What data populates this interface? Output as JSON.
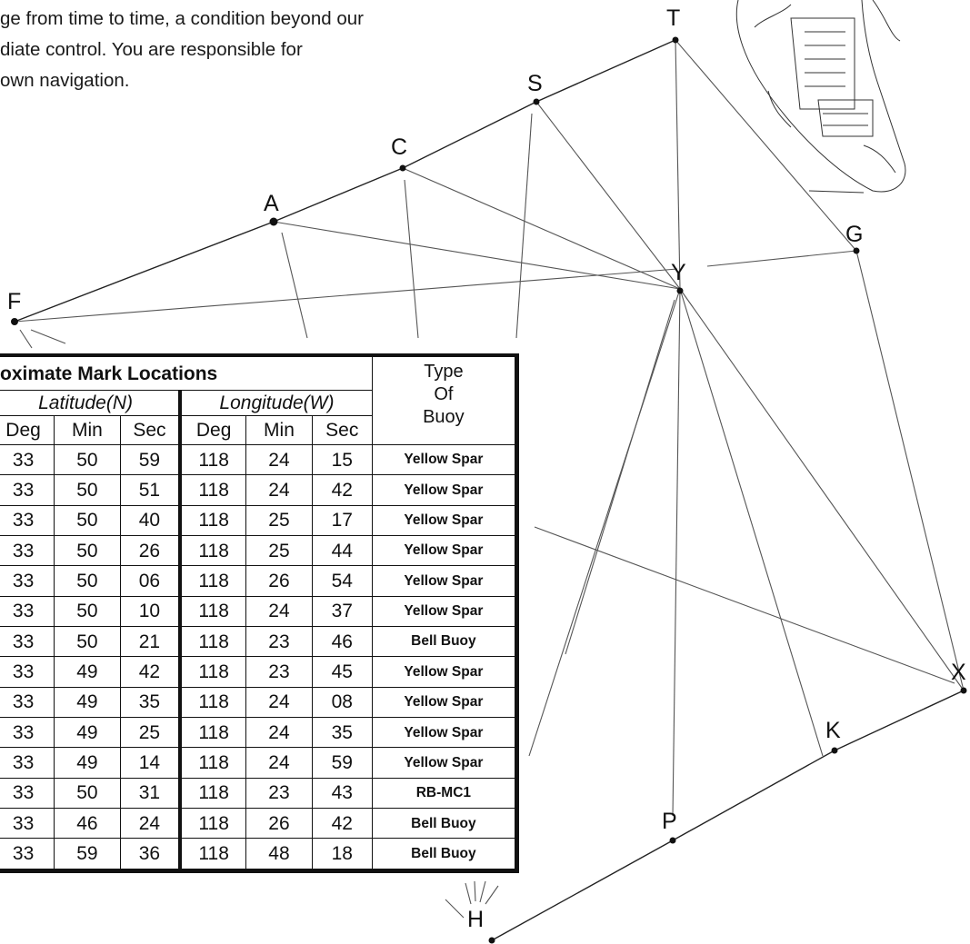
{
  "intro_lines": [
    "ge from time to time, a condition beyond our",
    "diate control.  You are responsible for",
    "own navigation."
  ],
  "marks": {
    "T": "T",
    "S": "S",
    "C": "C",
    "A": "A",
    "G": "G",
    "Y": "Y",
    "F": "F",
    "X": "X",
    "K": "K",
    "P": "P",
    "H": "H"
  },
  "table": {
    "title": "oximate Mark Locations",
    "type_header_lines": [
      "Type",
      "Of",
      "Buoy"
    ],
    "lat_header": "Latitude(N)",
    "lon_header": "Longitude(W)",
    "sub_headers": [
      "Deg",
      "Min",
      "Sec",
      "Deg",
      "Min",
      "Sec"
    ],
    "rows": [
      [
        "33",
        "50",
        "59",
        "118",
        "24",
        "15",
        "Yellow Spar"
      ],
      [
        "33",
        "50",
        "51",
        "118",
        "24",
        "42",
        "Yellow Spar"
      ],
      [
        "33",
        "50",
        "40",
        "118",
        "25",
        "17",
        "Yellow Spar"
      ],
      [
        "33",
        "50",
        "26",
        "118",
        "25",
        "44",
        "Yellow Spar"
      ],
      [
        "33",
        "50",
        "06",
        "118",
        "26",
        "54",
        "Yellow Spar"
      ],
      [
        "33",
        "50",
        "10",
        "118",
        "24",
        "37",
        "Yellow Spar"
      ],
      [
        "33",
        "50",
        "21",
        "118",
        "23",
        "46",
        "Bell Buoy"
      ],
      [
        "33",
        "49",
        "42",
        "118",
        "23",
        "45",
        "Yellow Spar"
      ],
      [
        "33",
        "49",
        "35",
        "118",
        "24",
        "08",
        "Yellow Spar"
      ],
      [
        "33",
        "49",
        "25",
        "118",
        "24",
        "35",
        "Yellow Spar"
      ],
      [
        "33",
        "49",
        "14",
        "118",
        "24",
        "59",
        "Yellow Spar"
      ],
      [
        "33",
        "50",
        "31",
        "118",
        "23",
        "43",
        "RB-MC1"
      ],
      [
        "33",
        "46",
        "24",
        "118",
        "26",
        "42",
        "Bell Buoy"
      ],
      [
        "33",
        "59",
        "36",
        "118",
        "48",
        "18",
        "Bell Buoy"
      ]
    ]
  }
}
